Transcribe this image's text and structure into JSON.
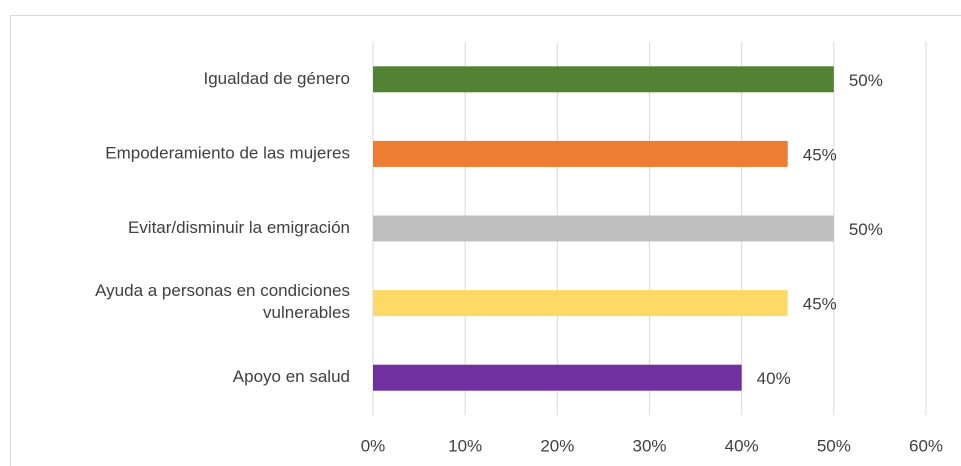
{
  "chart_data": {
    "type": "barh",
    "categories": [
      "Igualdad de género",
      "Empoderamiento de las mujeres",
      "Evitar/disminuir la emigración",
      "Ayuda a personas en condiciones vulnerables",
      "Apoyo en salud"
    ],
    "values": [
      50,
      45,
      50,
      45,
      40
    ],
    "value_labels": [
      "50%",
      "45%",
      "50%",
      "45%",
      "40%"
    ],
    "colors": [
      "#548235",
      "#ed7d31",
      "#bfbfbf",
      "#ffd966",
      "#7030a0"
    ],
    "xlim": [
      0,
      60
    ],
    "xticks": [
      {
        "value": 0,
        "label": "0%"
      },
      {
        "value": 10,
        "label": "10%"
      },
      {
        "value": 20,
        "label": "20%"
      },
      {
        "value": 30,
        "label": "30%"
      },
      {
        "value": 40,
        "label": "40%"
      },
      {
        "value": 50,
        "label": "50%"
      },
      {
        "value": 60,
        "label": "60%"
      }
    ],
    "grid": true
  }
}
